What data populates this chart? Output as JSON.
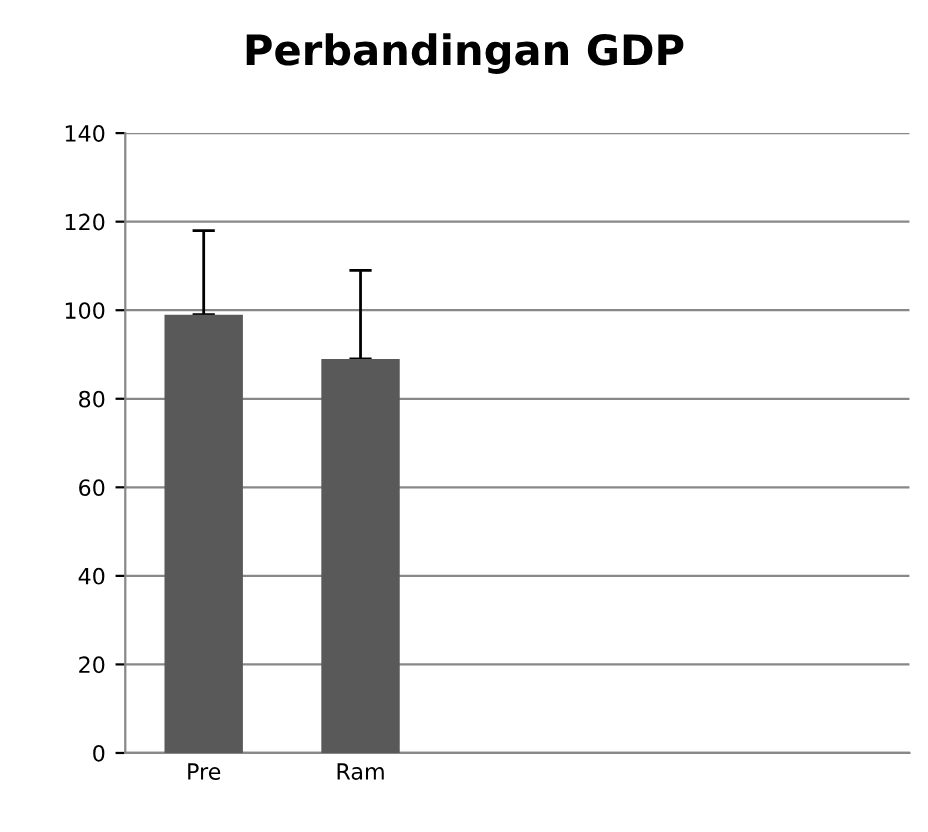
{
  "chart_data": {
    "type": "bar",
    "title": "Perbandingan GDP",
    "categories": [
      "Pre",
      "Ram",
      null,
      null,
      null
    ],
    "values": [
      99,
      89,
      null,
      null,
      null
    ],
    "errors": [
      [
        99,
        118
      ],
      [
        89,
        109
      ],
      null,
      null,
      null
    ],
    "color": "#595959",
    "ylim": [
      0,
      140
    ],
    "yticks": [
      0,
      20,
      40,
      60,
      80,
      100,
      120,
      140
    ],
    "grid": "y"
  }
}
